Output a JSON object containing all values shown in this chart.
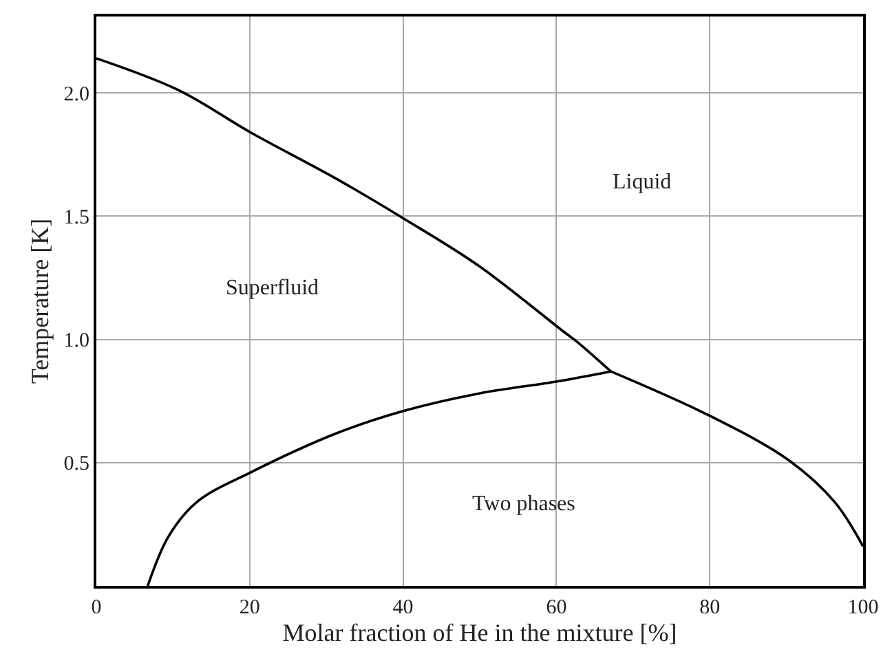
{
  "chart_data": {
    "type": "line",
    "xlabel": "Molar fraction of He in the mixture [%]",
    "ylabel": "Temperature [K]",
    "xlim": [
      0,
      100
    ],
    "xticks": [
      0,
      20,
      40,
      60,
      80,
      100
    ],
    "ylim": [
      0,
      2.31
    ],
    "yticks": [
      0.5,
      {
        "value": 1,
        "label": "1.0"
      },
      1.5,
      {
        "value": 2,
        "label": "2.0"
      }
    ],
    "grid": true,
    "marker": "none",
    "line_style": "solid",
    "series": [
      {
        "color": "#000000",
        "x": [
          0,
          10.8,
          20.1,
          31.4,
          40.1,
          49.8,
          61,
          62.7,
          67.1
        ],
        "values": [
          2.14,
          2.01,
          1.84,
          1.65,
          1.49,
          1.3,
          1.03,
          0.99,
          0.87
        ]
      },
      {
        "color": "#000000",
        "x": [
          6.7,
          9.4,
          13.1,
          20.1,
          31.4,
          40.1,
          49.8,
          60.2,
          67.1
        ],
        "values": [
          0,
          0.2,
          0.34,
          0.46,
          0.62,
          0.71,
          0.78,
          0.83,
          0.87
        ]
      },
      {
        "color": "#000000",
        "x": [
          67.1,
          80,
          90.3,
          96.3,
          100
        ],
        "values": [
          0.87,
          0.69,
          0.51,
          0.34,
          0.16
        ]
      }
    ],
    "annotations": [
      "Liquid",
      "Superfluid",
      "Two phases"
    ]
  }
}
